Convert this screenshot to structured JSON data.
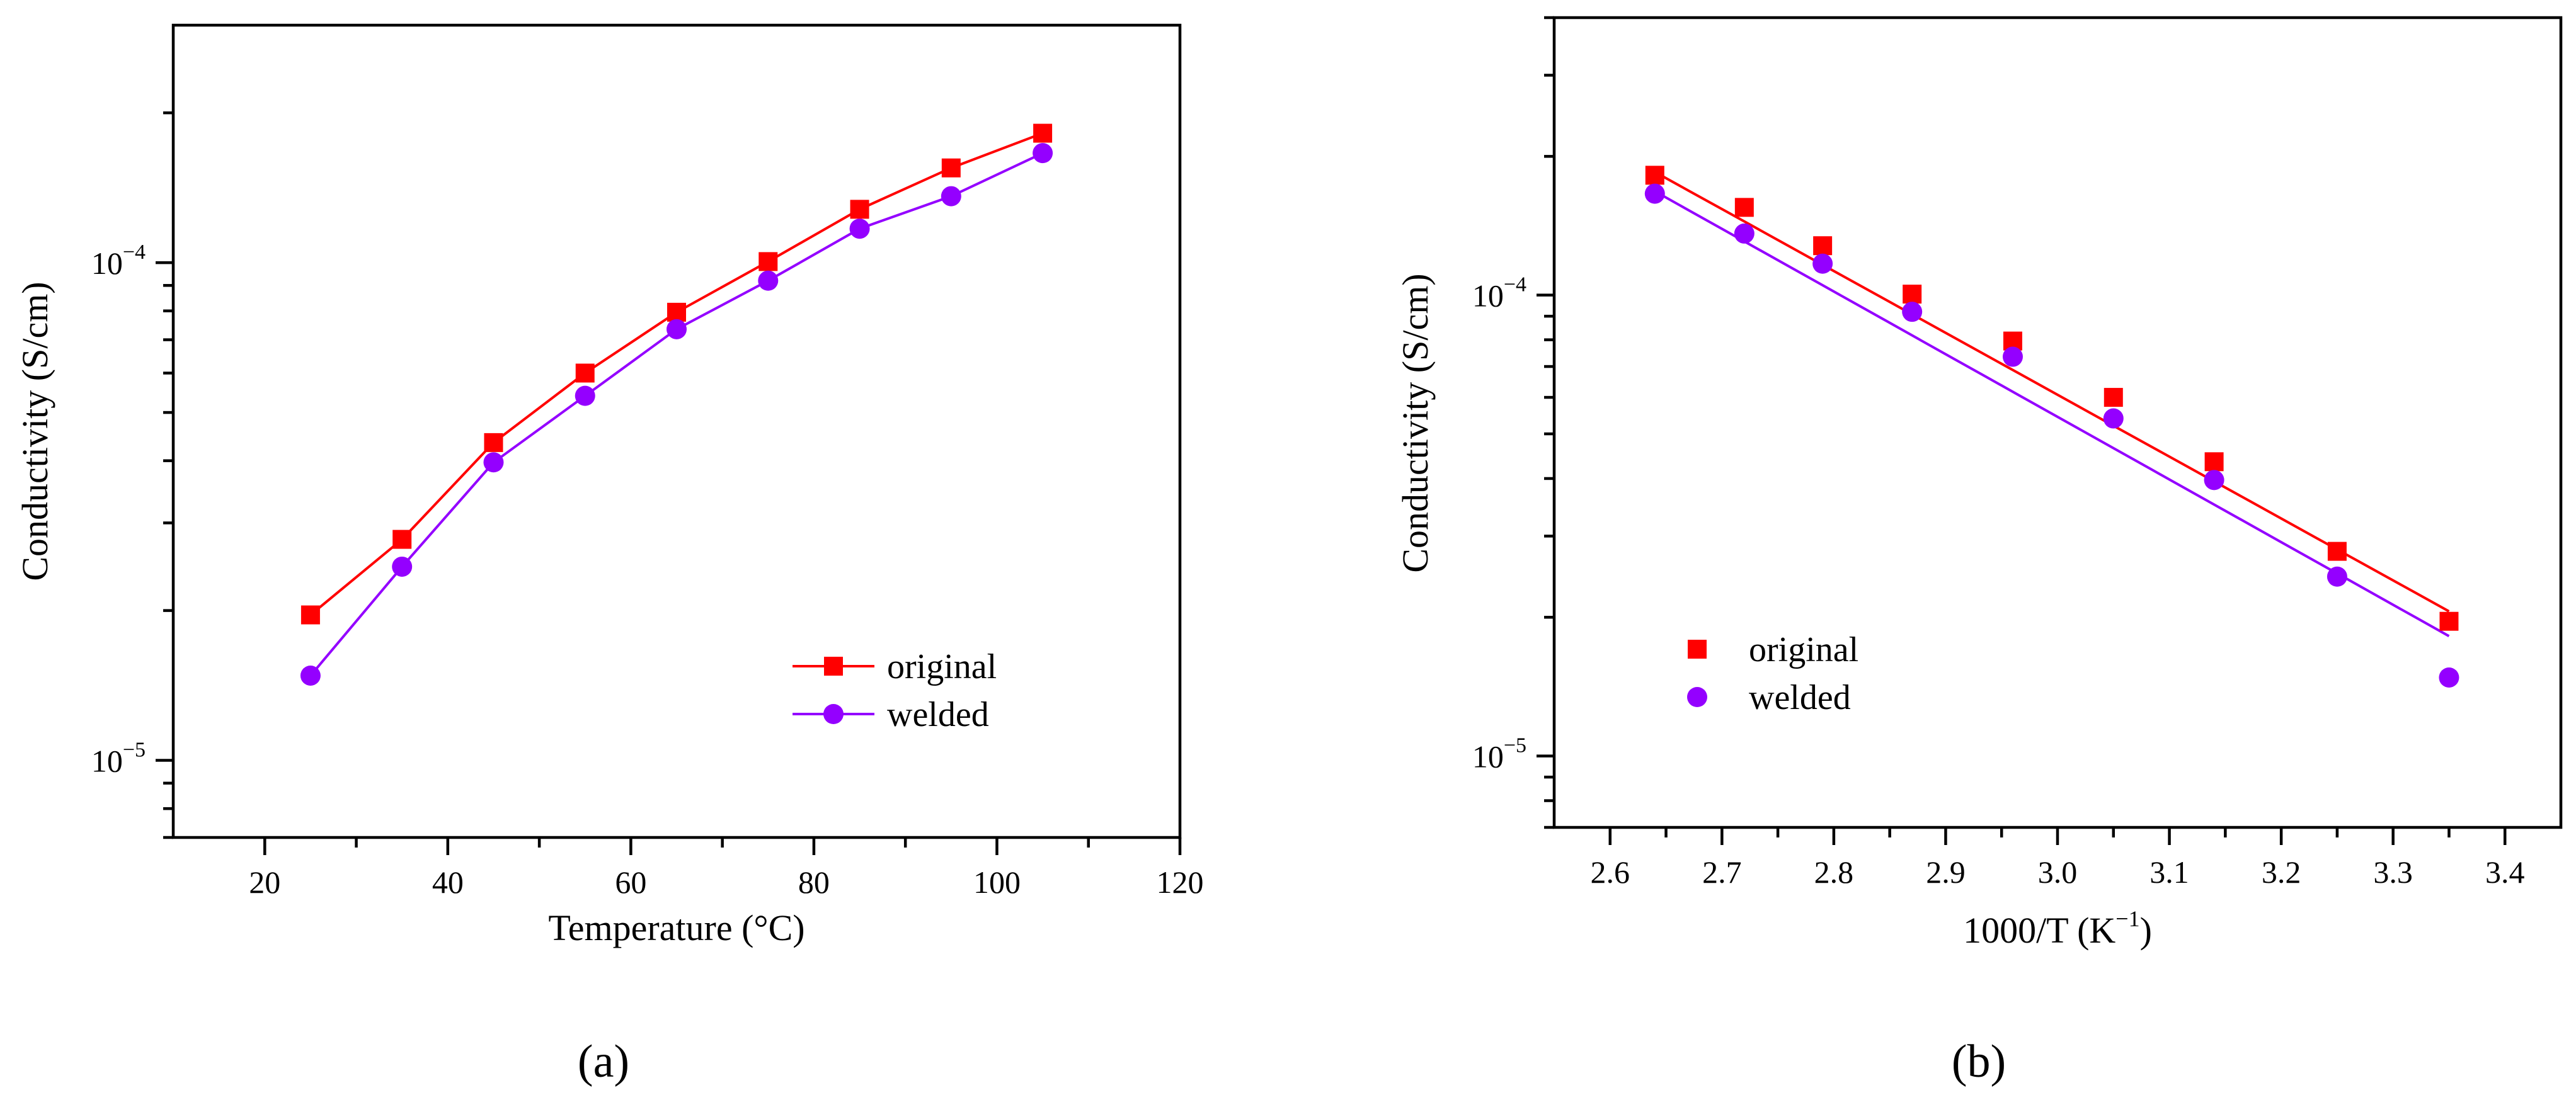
{
  "chart_data": [
    {
      "type": "line",
      "panel_label": "(a)",
      "xlabel": "Temperature (°C)",
      "ylabel": "Conductivity (S/cm)",
      "xlim": [
        10,
        120
      ],
      "ylim": [
        7e-06,
        0.0003
      ],
      "yscale": "log",
      "x_ticks": [
        20,
        40,
        60,
        80,
        100,
        120
      ],
      "x_tick_labels": [
        "20",
        "40",
        "60",
        "80",
        "100",
        "120"
      ],
      "y_tick_labels": [
        {
          "value": 1e-05,
          "base": "10",
          "exp": "−5"
        },
        {
          "value": 0.0001,
          "base": "10",
          "exp": "−4"
        }
      ],
      "legend": "right-lower",
      "x": [
        25,
        35,
        45,
        55,
        65,
        75,
        85,
        95,
        105
      ],
      "series": [
        {
          "name": "original",
          "color": "#ff0000",
          "marker": "square",
          "line": true,
          "values": [
            1.96e-05,
            2.78e-05,
            4.35e-05,
            6e-05,
            7.95e-05,
            0.0001005,
            0.000128,
            0.000155,
            0.000182
          ]
        },
        {
          "name": "welded",
          "color": "#9400ff",
          "marker": "circle",
          "line": true,
          "values": [
            1.48e-05,
            2.45e-05,
            3.97e-05,
            5.4e-05,
            7.35e-05,
            9.2e-05,
            0.000117,
            0.000136,
            0.000166
          ]
        }
      ]
    },
    {
      "type": "scatter",
      "panel_label": "(b)",
      "xlabel": "1000/T (K",
      "xlabel_sup": "−1",
      "xlabel_end": ")",
      "ylabel": "Conductivity (S/cm)",
      "xlim": [
        2.55,
        3.45
      ],
      "ylim": [
        7e-06,
        0.0004
      ],
      "yscale": "log",
      "x_ticks": [
        2.6,
        2.7,
        2.8,
        2.9,
        3.0,
        3.1,
        3.2,
        3.3,
        3.4
      ],
      "x_tick_labels": [
        "2.6",
        "2.7",
        "2.8",
        "2.9",
        "3.0",
        "3.1",
        "3.2",
        "3.3",
        "3.4"
      ],
      "y_tick_labels": [
        {
          "value": 1e-05,
          "base": "10",
          "exp": "−5"
        },
        {
          "value": 0.0001,
          "base": "10",
          "exp": "−4"
        }
      ],
      "legend": "left-lower",
      "x": [
        2.64,
        2.72,
        2.79,
        2.87,
        2.96,
        3.05,
        3.14,
        3.25,
        3.35
      ],
      "series": [
        {
          "name": "original",
          "color": "#ff0000",
          "marker": "square",
          "values": [
            0.000182,
            0.000155,
            0.000128,
            0.0001005,
            7.95e-05,
            6e-05,
            4.35e-05,
            2.78e-05,
            1.96e-05
          ]
        },
        {
          "name": "welded",
          "color": "#9400ff",
          "marker": "circle",
          "values": [
            0.000166,
            0.000136,
            0.000117,
            9.2e-05,
            7.35e-05,
            5.4e-05,
            3.97e-05,
            2.45e-05,
            1.48e-05
          ]
        }
      ],
      "fits": [
        {
          "name": "original fit",
          "color": "#ff0000",
          "x": [
            2.64,
            3.35
          ],
          "values": [
            0.000185,
            2.06e-05
          ]
        },
        {
          "name": "welded fit",
          "color": "#9400ff",
          "x": [
            2.64,
            3.35
          ],
          "values": [
            0.000168,
            1.82e-05
          ]
        }
      ]
    }
  ]
}
